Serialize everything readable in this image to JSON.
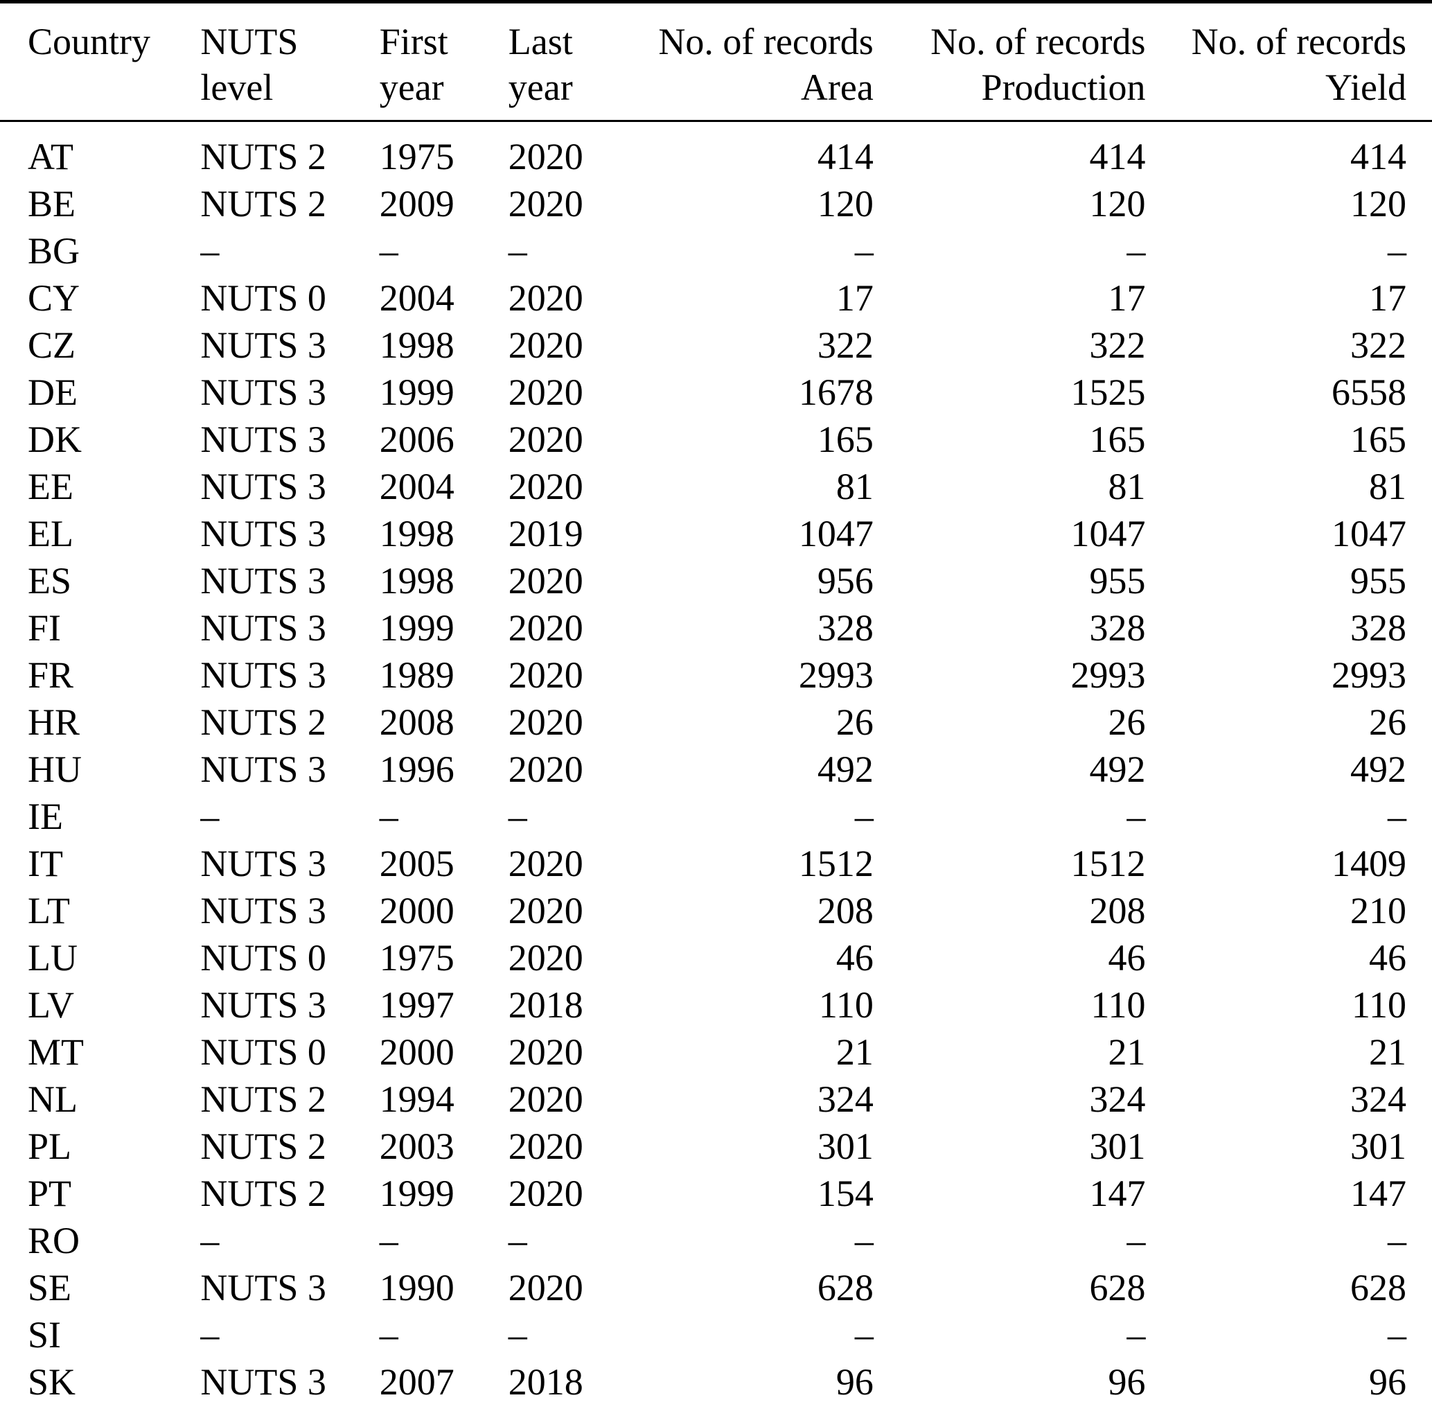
{
  "colors": {
    "text": "#000000",
    "background": "#ffffff",
    "rule": "#000000"
  },
  "table": {
    "na_marker": "–",
    "columns": [
      {
        "line1": "Country",
        "line2": ""
      },
      {
        "line1": "NUTS",
        "line2": "level"
      },
      {
        "line1": "First",
        "line2": "year"
      },
      {
        "line1": "Last",
        "line2": "year"
      },
      {
        "line1": "No. of records",
        "line2": "Area"
      },
      {
        "line1": "No. of records",
        "line2": "Production"
      },
      {
        "line1": "No. of records",
        "line2": "Yield"
      }
    ],
    "rows": [
      {
        "country": "AT",
        "nuts_level": "NUTS 2",
        "first_year": "1975",
        "last_year": "2020",
        "records_area": "414",
        "records_production": "414",
        "records_yield": "414"
      },
      {
        "country": "BE",
        "nuts_level": "NUTS 2",
        "first_year": "2009",
        "last_year": "2020",
        "records_area": "120",
        "records_production": "120",
        "records_yield": "120"
      },
      {
        "country": "BG",
        "nuts_level": "–",
        "first_year": "–",
        "last_year": "–",
        "records_area": "–",
        "records_production": "–",
        "records_yield": "–"
      },
      {
        "country": "CY",
        "nuts_level": "NUTS 0",
        "first_year": "2004",
        "last_year": "2020",
        "records_area": "17",
        "records_production": "17",
        "records_yield": "17"
      },
      {
        "country": "CZ",
        "nuts_level": "NUTS 3",
        "first_year": "1998",
        "last_year": "2020",
        "records_area": "322",
        "records_production": "322",
        "records_yield": "322"
      },
      {
        "country": "DE",
        "nuts_level": "NUTS 3",
        "first_year": "1999",
        "last_year": "2020",
        "records_area": "1678",
        "records_production": "1525",
        "records_yield": "6558"
      },
      {
        "country": "DK",
        "nuts_level": "NUTS 3",
        "first_year": "2006",
        "last_year": "2020",
        "records_area": "165",
        "records_production": "165",
        "records_yield": "165"
      },
      {
        "country": "EE",
        "nuts_level": "NUTS 3",
        "first_year": "2004",
        "last_year": "2020",
        "records_area": "81",
        "records_production": "81",
        "records_yield": "81"
      },
      {
        "country": "EL",
        "nuts_level": "NUTS 3",
        "first_year": "1998",
        "last_year": "2019",
        "records_area": "1047",
        "records_production": "1047",
        "records_yield": "1047"
      },
      {
        "country": "ES",
        "nuts_level": "NUTS 3",
        "first_year": "1998",
        "last_year": "2020",
        "records_area": "956",
        "records_production": "955",
        "records_yield": "955"
      },
      {
        "country": "FI",
        "nuts_level": "NUTS 3",
        "first_year": "1999",
        "last_year": "2020",
        "records_area": "328",
        "records_production": "328",
        "records_yield": "328"
      },
      {
        "country": "FR",
        "nuts_level": "NUTS 3",
        "first_year": "1989",
        "last_year": "2020",
        "records_area": "2993",
        "records_production": "2993",
        "records_yield": "2993"
      },
      {
        "country": "HR",
        "nuts_level": "NUTS 2",
        "first_year": "2008",
        "last_year": "2020",
        "records_area": "26",
        "records_production": "26",
        "records_yield": "26"
      },
      {
        "country": "HU",
        "nuts_level": "NUTS 3",
        "first_year": "1996",
        "last_year": "2020",
        "records_area": "492",
        "records_production": "492",
        "records_yield": "492"
      },
      {
        "country": "IE",
        "nuts_level": "–",
        "first_year": "–",
        "last_year": "–",
        "records_area": "–",
        "records_production": "–",
        "records_yield": "–"
      },
      {
        "country": "IT",
        "nuts_level": "NUTS 3",
        "first_year": "2005",
        "last_year": "2020",
        "records_area": "1512",
        "records_production": "1512",
        "records_yield": "1409"
      },
      {
        "country": "LT",
        "nuts_level": "NUTS 3",
        "first_year": "2000",
        "last_year": "2020",
        "records_area": "208",
        "records_production": "208",
        "records_yield": "210"
      },
      {
        "country": "LU",
        "nuts_level": "NUTS 0",
        "first_year": "1975",
        "last_year": "2020",
        "records_area": "46",
        "records_production": "46",
        "records_yield": "46"
      },
      {
        "country": "LV",
        "nuts_level": "NUTS 3",
        "first_year": "1997",
        "last_year": "2018",
        "records_area": "110",
        "records_production": "110",
        "records_yield": "110"
      },
      {
        "country": "MT",
        "nuts_level": "NUTS 0",
        "first_year": "2000",
        "last_year": "2020",
        "records_area": "21",
        "records_production": "21",
        "records_yield": "21"
      },
      {
        "country": "NL",
        "nuts_level": "NUTS 2",
        "first_year": "1994",
        "last_year": "2020",
        "records_area": "324",
        "records_production": "324",
        "records_yield": "324"
      },
      {
        "country": "PL",
        "nuts_level": "NUTS 2",
        "first_year": "2003",
        "last_year": "2020",
        "records_area": "301",
        "records_production": "301",
        "records_yield": "301"
      },
      {
        "country": "PT",
        "nuts_level": "NUTS 2",
        "first_year": "1999",
        "last_year": "2020",
        "records_area": "154",
        "records_production": "147",
        "records_yield": "147"
      },
      {
        "country": "RO",
        "nuts_level": "–",
        "first_year": "–",
        "last_year": "–",
        "records_area": "–",
        "records_production": "–",
        "records_yield": "–"
      },
      {
        "country": "SE",
        "nuts_level": "NUTS 3",
        "first_year": "1990",
        "last_year": "2020",
        "records_area": "628",
        "records_production": "628",
        "records_yield": "628"
      },
      {
        "country": "SI",
        "nuts_level": "–",
        "first_year": "–",
        "last_year": "–",
        "records_area": "–",
        "records_production": "–",
        "records_yield": "–"
      },
      {
        "country": "SK",
        "nuts_level": "NUTS 3",
        "first_year": "2007",
        "last_year": "2018",
        "records_area": "96",
        "records_production": "96",
        "records_yield": "96"
      }
    ]
  }
}
